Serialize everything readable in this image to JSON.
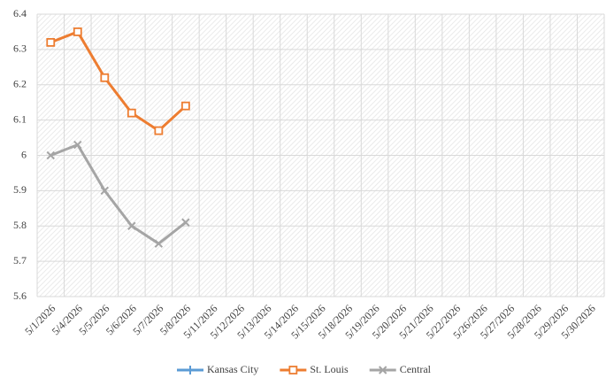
{
  "chart_data": {
    "type": "line",
    "categories": [
      "5/1/2026",
      "5/4/2026",
      "5/5/2026",
      "5/6/2026",
      "5/7/2026",
      "5/8/2026",
      "5/11/2026",
      "5/12/2026",
      "5/13/2026",
      "5/14/2026",
      "5/15/2026",
      "5/18/2026",
      "5/19/2026",
      "5/20/2026",
      "5/21/2026",
      "5/22/2026",
      "5/26/2026",
      "5/27/2026",
      "5/28/2026",
      "5/29/2026",
      "5/30/2026"
    ],
    "series": [
      {
        "name": "Kansas City",
        "color": "#5b9bd5",
        "marker": "plus",
        "values": [
          null,
          null,
          null,
          null,
          null,
          null,
          null,
          null,
          null,
          null,
          null,
          null,
          null,
          null,
          null,
          null,
          null,
          null,
          null,
          null,
          null
        ]
      },
      {
        "name": "St. Louis",
        "color": "#ed7d31",
        "marker": "square",
        "values": [
          6.32,
          6.35,
          6.22,
          6.12,
          6.07,
          6.14,
          null,
          null,
          null,
          null,
          null,
          null,
          null,
          null,
          null,
          null,
          null,
          null,
          null,
          null,
          null
        ]
      },
      {
        "name": "Central",
        "color": "#a5a5a5",
        "marker": "x",
        "values": [
          6.0,
          6.03,
          5.9,
          5.8,
          5.75,
          5.81,
          null,
          null,
          null,
          null,
          null,
          null,
          null,
          null,
          null,
          null,
          null,
          null,
          null,
          null,
          null
        ]
      }
    ],
    "ylim": [
      5.6,
      6.4
    ],
    "yticks": [
      5.6,
      5.7,
      5.8,
      5.9,
      6,
      6.1,
      6.2,
      6.3,
      6.4
    ],
    "grid": true,
    "legend": "bottom"
  }
}
